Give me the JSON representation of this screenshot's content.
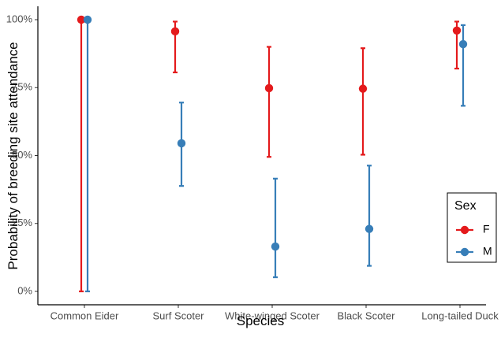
{
  "chart_data": {
    "type": "scatter",
    "subtype": "point-range",
    "xlabel": "Species",
    "ylabel": "Probability of breeding site attendance",
    "categories": [
      "Common Eider",
      "Surf Scoter",
      "White-winged Scoter",
      "Black Scoter",
      "Long-tailed Duck"
    ],
    "ylim": [
      0,
      1
    ],
    "yticks": [
      0,
      0.25,
      0.5,
      0.75,
      1.0
    ],
    "ytick_labels": [
      "0%",
      "25%",
      "50%",
      "75%",
      "100%"
    ],
    "grid": false,
    "legend": {
      "title": "Sex",
      "position": "right"
    },
    "series": [
      {
        "name": "F",
        "color": "#e41a1c",
        "values": [
          1.0,
          0.957,
          0.748,
          0.746,
          0.96
        ],
        "lower": [
          0.0,
          0.806,
          0.495,
          0.503,
          0.82
        ],
        "upper": [
          1.0,
          0.993,
          0.9,
          0.895,
          0.993
        ]
      },
      {
        "name": "M",
        "color": "#377eb8",
        "values": [
          1.0,
          0.545,
          0.165,
          0.23,
          0.91
        ],
        "lower": [
          0.0,
          0.388,
          0.052,
          0.094,
          0.683
        ],
        "upper": [
          1.0,
          0.695,
          0.415,
          0.463,
          0.98
        ]
      }
    ]
  }
}
